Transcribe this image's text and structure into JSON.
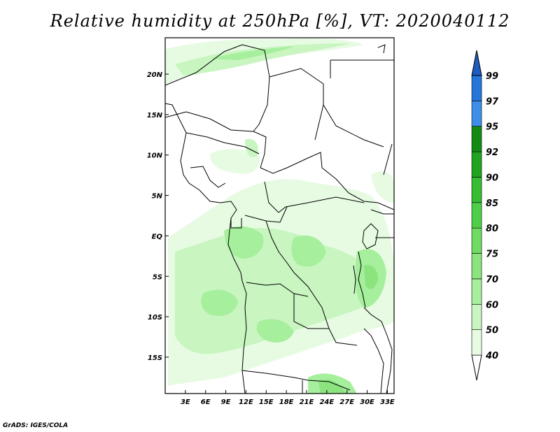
{
  "title": "Relative humidity at 250hPa [%], VT: 2020040112",
  "credit": "GrADS: IGES/COLA",
  "map": {
    "lat_range": [
      -19.5,
      24.5
    ],
    "lon_range": [
      0,
      34
    ],
    "lat_labels": [
      {
        "lat": 20,
        "text": "20N"
      },
      {
        "lat": 15,
        "text": "15N"
      },
      {
        "lat": 10,
        "text": "10N"
      },
      {
        "lat": 5,
        "text": "5N"
      },
      {
        "lat": 0,
        "text": "EQ"
      },
      {
        "lat": -5,
        "text": "5S"
      },
      {
        "lat": -10,
        "text": "10S"
      },
      {
        "lat": -15,
        "text": "15S"
      }
    ],
    "lon_labels": [
      {
        "lon": 3,
        "text": "3E"
      },
      {
        "lon": 6,
        "text": "6E"
      },
      {
        "lon": 9,
        "text": "9E"
      },
      {
        "lon": 12,
        "text": "12E"
      },
      {
        "lon": 15,
        "text": "15E"
      },
      {
        "lon": 18,
        "text": "18E"
      },
      {
        "lon": 21,
        "text": "21E"
      },
      {
        "lon": 24,
        "text": "24E"
      },
      {
        "lon": 27,
        "text": "27E"
      },
      {
        "lon": 30,
        "text": "30E"
      },
      {
        "lon": 33,
        "text": "33E"
      }
    ]
  },
  "colorbar": {
    "levels": [
      "40",
      "50",
      "60",
      "70",
      "75",
      "80",
      "85",
      "90",
      "92",
      "95",
      "97",
      "99"
    ],
    "colors": [
      "#ffffff",
      "#e6fbe2",
      "#c8f5c0",
      "#a6ef9d",
      "#8be47e",
      "#6fdb62",
      "#4fcf48",
      "#36bd32",
      "#22a31f",
      "#138b12",
      "#3d8ee8",
      "#2575da",
      "#1c5dbf"
    ]
  }
}
